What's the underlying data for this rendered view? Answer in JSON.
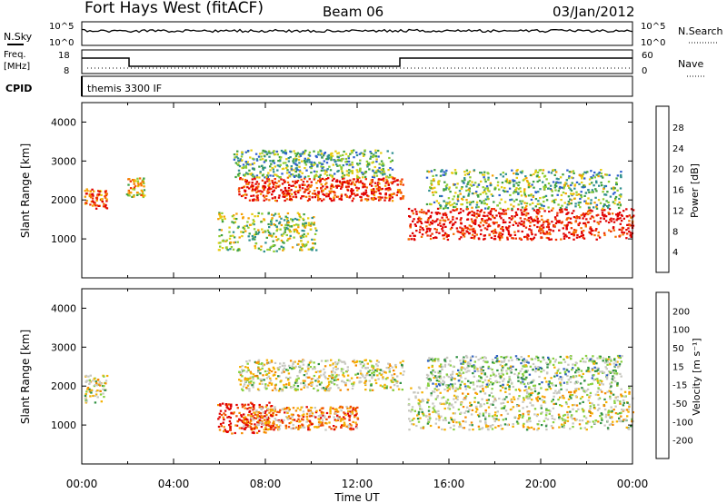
{
  "header": {
    "station": "Fort Hays West (fitACF)",
    "beam": "Beam 06",
    "date": "03/Jan/2012"
  },
  "status_panels": {
    "nsky_label": "N.Sky",
    "nsky_ticks": [
      "10^5",
      "10^0"
    ],
    "nsearch_label": "N.Search",
    "nsearch_ticks": [
      "10^5",
      "10^0"
    ],
    "freq_label": "Freq.",
    "freq_unit": "[MHz]",
    "freq_ticks": [
      "18",
      "8"
    ],
    "nave_label": "Nave",
    "nave_ticks": [
      "60",
      "0"
    ],
    "cpid_label": "CPID",
    "cpid_value": "themis 3300 IF"
  },
  "chart_data": [
    {
      "type": "heatmap",
      "name": "power",
      "ylabel": "Slant Range [km]",
      "ylim": [
        0,
        4500
      ],
      "xlim_hours": [
        0,
        24
      ],
      "yticks": [
        1000,
        2000,
        3000,
        4000
      ],
      "colorbar": {
        "label": "Power [dB]",
        "ticks": [
          "4",
          "8",
          "12",
          "16",
          "20",
          "24",
          "28"
        ],
        "colors": [
          "#1a1ae0",
          "#2e5fd0",
          "#2e8f8f",
          "#3fa040",
          "#8fcc30",
          "#e6cc10",
          "#f5a000",
          "#f57000",
          "#f03000",
          "#e00000"
        ]
      },
      "regions": [
        {
          "t0": 0.1,
          "t1": 1.1,
          "r0": 1800,
          "r1": 2300,
          "level": 0.8
        },
        {
          "t0": 1.9,
          "t1": 2.7,
          "r0": 2100,
          "r1": 2600,
          "level": 0.6
        },
        {
          "t0": 5.9,
          "t1": 10.2,
          "r0": 700,
          "r1": 1700,
          "level": 0.45
        },
        {
          "t0": 6.8,
          "t1": 14.0,
          "r0": 2000,
          "r1": 2600,
          "level": 0.9
        },
        {
          "t0": 6.6,
          "t1": 13.5,
          "r0": 2600,
          "r1": 3300,
          "level": 0.35
        },
        {
          "t0": 14.2,
          "t1": 24.0,
          "r0": 1000,
          "r1": 1800,
          "level": 0.95
        },
        {
          "t0": 15.0,
          "t1": 23.5,
          "r0": 1800,
          "r1": 2800,
          "level": 0.4
        }
      ]
    },
    {
      "type": "heatmap",
      "name": "velocity",
      "ylabel": "Slant Range [km]",
      "xlabel": "Time UT",
      "ylim": [
        0,
        4500
      ],
      "xlim_hours": [
        0,
        24
      ],
      "yticks": [
        1000,
        2000,
        3000,
        4000
      ],
      "xticks": [
        "00:00",
        "04:00",
        "08:00",
        "12:00",
        "16:00",
        "20:00",
        "00:00"
      ],
      "colorbar": {
        "label": "Velocity [m s⁻¹]",
        "ticks": [
          "-200",
          "-100",
          "-50",
          "-15",
          "15",
          "50",
          "100",
          "200"
        ],
        "colors": [
          "#e00000",
          "#f04a00",
          "#f58a00",
          "#f5b000",
          "#c8c8c0",
          "#c8c8c0",
          "#88d040",
          "#2e9040",
          "#2e60c0",
          "#1a1ad0"
        ]
      },
      "regions": [
        {
          "t0": 0.1,
          "t1": 1.1,
          "r0": 1600,
          "r1": 2300,
          "level": 0.5
        },
        {
          "t0": 5.9,
          "t1": 8.3,
          "r0": 800,
          "r1": 1600,
          "level": 0.05
        },
        {
          "t0": 7.0,
          "t1": 12.0,
          "r0": 900,
          "r1": 1500,
          "level": 0.25
        },
        {
          "t0": 6.8,
          "t1": 14.0,
          "r0": 1900,
          "r1": 2700,
          "level": 0.5
        },
        {
          "t0": 14.2,
          "t1": 24.0,
          "r0": 900,
          "r1": 2000,
          "level": 0.5
        },
        {
          "t0": 15.0,
          "t1": 23.5,
          "r0": 2000,
          "r1": 2800,
          "level": 0.6
        }
      ]
    }
  ]
}
